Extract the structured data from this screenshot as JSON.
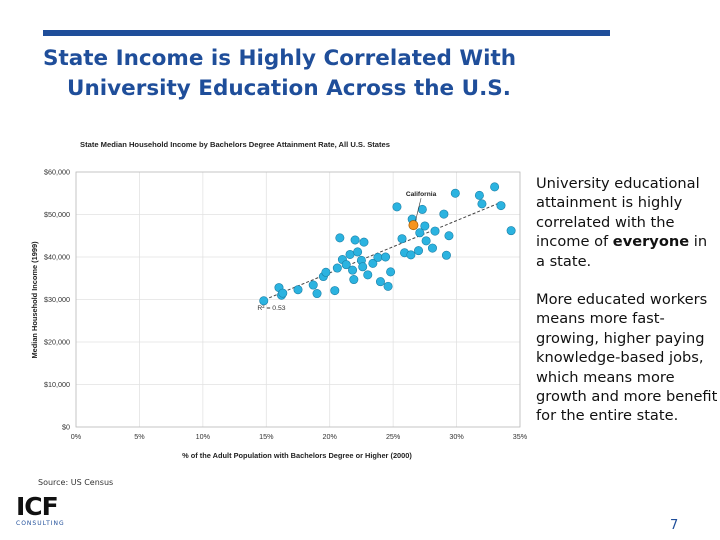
{
  "slide": {
    "title_line1": "State Income is Highly Correlated With",
    "title_line2": "University Education Across the U.S.",
    "accent_color": "#1f4e9a",
    "source": "Source: US Census",
    "page_number": "7",
    "logo_main": "ICF",
    "logo_sub": "CONSULTING"
  },
  "bullets": [
    {
      "before": "University educational attainment is highly correlated with the income of ",
      "bold": "everyone",
      "after": " in a state."
    },
    {
      "before": "More educated workers means more fast-growing, higher paying knowledge-based jobs, which means more growth and more benefit for the entire state.",
      "bold": "",
      "after": ""
    }
  ],
  "chart_data": {
    "type": "scatter",
    "title": "State Median Household Income by Bachelors Degree Attainment Rate, All U.S. States",
    "xlabel": "% of the Adult Population with Bachelors Degree or Higher (2000)",
    "ylabel": "Median Household Income (1999)",
    "xlim": [
      0,
      35
    ],
    "ylim": [
      0,
      60000
    ],
    "x_ticks": [
      "0%",
      "5%",
      "10%",
      "15%",
      "20%",
      "25%",
      "30%",
      "35%"
    ],
    "y_ticks": [
      "$0",
      "$10,000",
      "$20,000",
      "$30,000",
      "$40,000",
      "$50,000",
      "$60,000"
    ],
    "grid": true,
    "point_color": "#2bb3e0",
    "highlight_color": "#f7941d",
    "trendline": {
      "x": [
        14.5,
        33.2
      ],
      "y": [
        29500,
        52500
      ]
    },
    "r_squared_label": "R² = 0.53",
    "r_squared_at": [
      14.3,
      27500
    ],
    "highlight": {
      "name": "California",
      "x": 26.6,
      "y": 47500,
      "label_at": [
        27.2,
        54300
      ]
    },
    "points": [
      [
        14.8,
        29700
      ],
      [
        16.0,
        32800
      ],
      [
        16.2,
        31000
      ],
      [
        16.3,
        31500
      ],
      [
        17.5,
        32300
      ],
      [
        18.7,
        33400
      ],
      [
        19.0,
        31400
      ],
      [
        19.5,
        35400
      ],
      [
        19.7,
        36400
      ],
      [
        20.4,
        32100
      ],
      [
        20.6,
        37400
      ],
      [
        20.8,
        44500
      ],
      [
        21.0,
        39400
      ],
      [
        21.3,
        38200
      ],
      [
        21.6,
        40600
      ],
      [
        21.8,
        36900
      ],
      [
        21.9,
        34700
      ],
      [
        22.0,
        44000
      ],
      [
        22.2,
        41200
      ],
      [
        22.5,
        39200
      ],
      [
        22.6,
        37700
      ],
      [
        22.7,
        43500
      ],
      [
        23.0,
        35800
      ],
      [
        23.4,
        38500
      ],
      [
        23.8,
        39900
      ],
      [
        24.0,
        34200
      ],
      [
        24.4,
        40000
      ],
      [
        24.6,
        33100
      ],
      [
        24.8,
        36500
      ],
      [
        25.3,
        51800
      ],
      [
        25.7,
        44300
      ],
      [
        25.9,
        41000
      ],
      [
        26.4,
        40500
      ],
      [
        26.5,
        48900
      ],
      [
        27.0,
        41500
      ],
      [
        27.1,
        45700
      ],
      [
        27.3,
        51200
      ],
      [
        27.5,
        47300
      ],
      [
        27.6,
        43800
      ],
      [
        28.1,
        42100
      ],
      [
        28.3,
        46100
      ],
      [
        29.0,
        50100
      ],
      [
        29.2,
        40400
      ],
      [
        29.4,
        45000
      ],
      [
        29.9,
        55000
      ],
      [
        31.8,
        54500
      ],
      [
        32.0,
        52500
      ],
      [
        33.0,
        56500
      ],
      [
        33.5,
        52100
      ],
      [
        34.3,
        46200
      ]
    ]
  }
}
